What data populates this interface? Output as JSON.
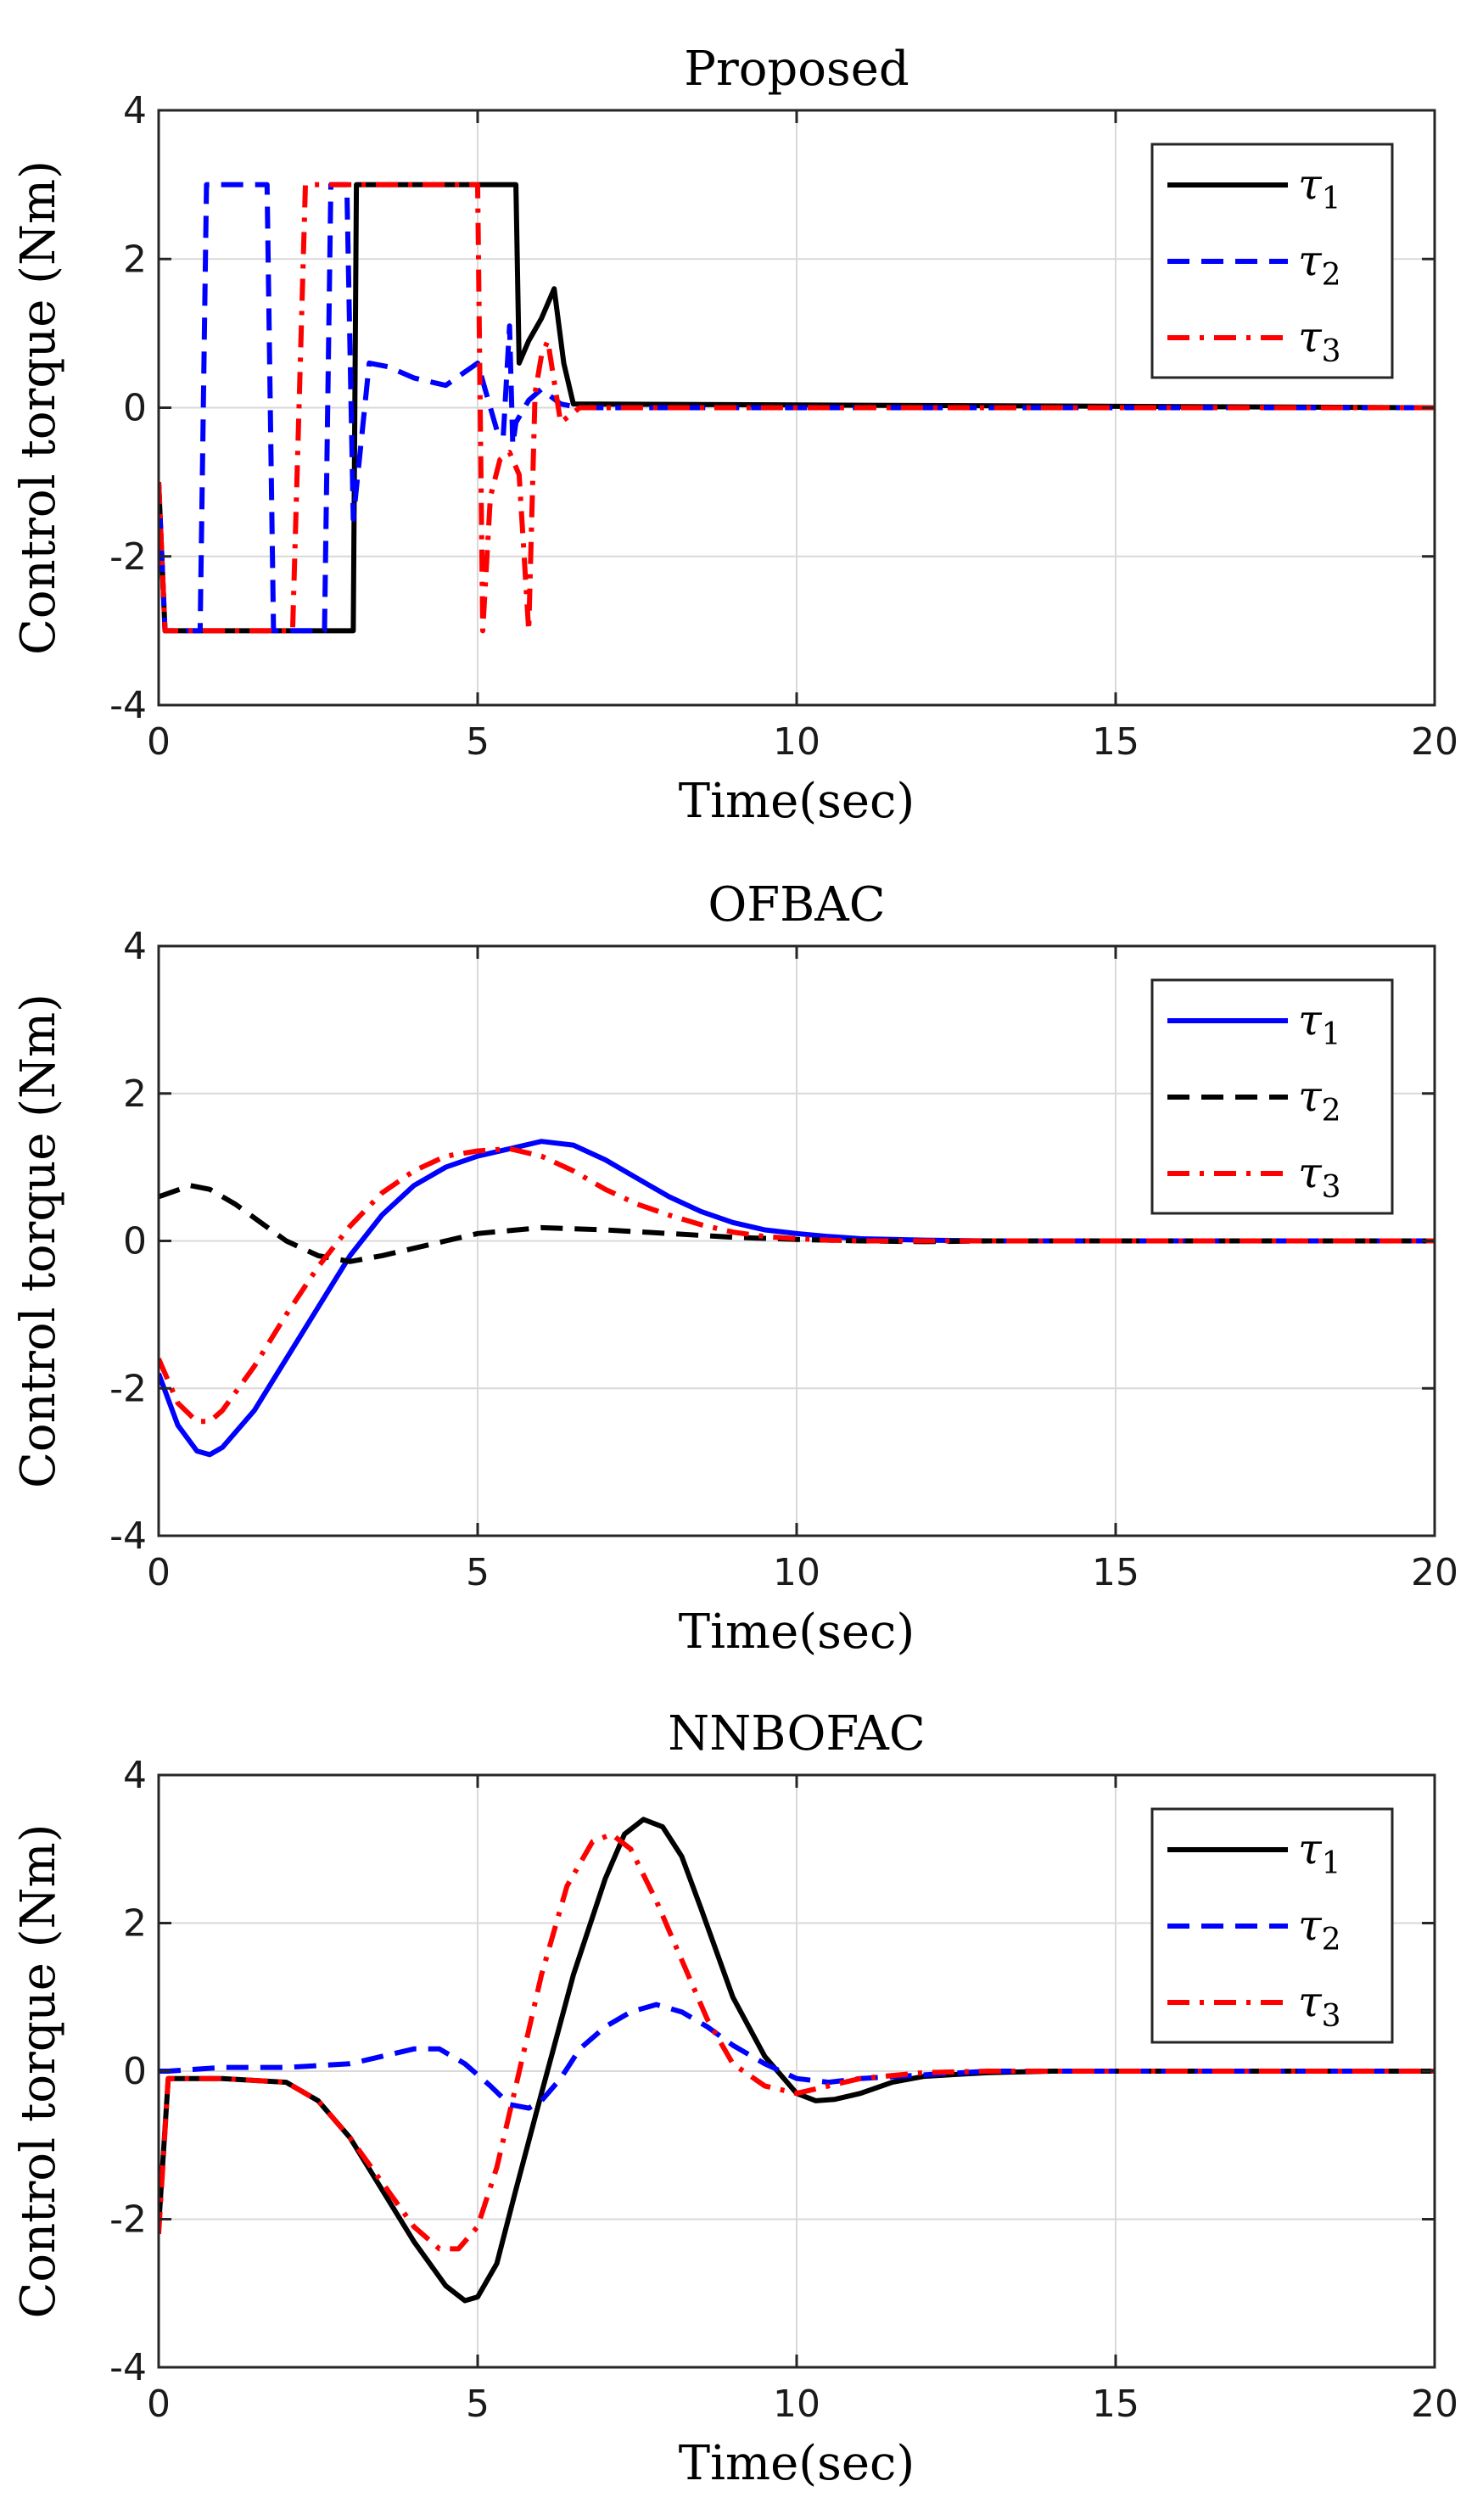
{
  "chart_data": [
    {
      "type": "line",
      "title": "Proposed",
      "xlabel": "Time(sec)",
      "ylabel": "Control torque (Nm)",
      "xlim": [
        0,
        20
      ],
      "ylim": [
        -4,
        4
      ],
      "xticks": [
        "0",
        "5",
        "10",
        "15",
        "20"
      ],
      "yticks": [
        "4",
        "2",
        "0",
        "-2",
        "-4"
      ],
      "grid": true,
      "legend_position": "top-right",
      "series": [
        {
          "name": "τ",
          "sub": "1",
          "color": "#000000",
          "dash": "solid",
          "x": [
            0,
            0.1,
            2.9,
            3.05,
            3.1,
            5.6,
            5.65,
            5.8,
            6.0,
            6.2,
            6.35,
            6.5,
            20
          ],
          "y": [
            -1.0,
            -3,
            -3,
            -3,
            3,
            3,
            0.6,
            0.9,
            1.2,
            1.6,
            0.6,
            0.05,
            0
          ]
        },
        {
          "name": "τ",
          "sub": "2",
          "color": "#0000ff",
          "dash": "dash",
          "x": [
            0,
            0.1,
            0.65,
            0.75,
            1.7,
            1.8,
            2.6,
            2.7,
            2.95,
            3.05,
            3.3,
            3.6,
            4.0,
            4.5,
            5.0,
            5.2,
            5.3,
            5.4,
            5.5,
            5.55,
            5.6,
            5.8,
            6.0,
            6.3,
            6.6,
            20
          ],
          "y": [
            -1.0,
            -3,
            -3,
            3,
            3,
            -3,
            -3,
            3,
            3,
            -1.5,
            0.6,
            0.55,
            0.4,
            0.3,
            0.6,
            0.0,
            -0.3,
            -0.4,
            1.1,
            -0.5,
            -0.2,
            0.1,
            0.25,
            0.05,
            0,
            0
          ]
        },
        {
          "name": "τ",
          "sub": "3",
          "color": "#ff0000",
          "dash": "dashdot",
          "x": [
            0,
            0.1,
            2.1,
            2.3,
            5.0,
            5.08,
            5.2,
            5.35,
            5.5,
            5.65,
            5.8,
            5.9,
            6.0,
            6.1,
            6.3,
            6.6,
            20
          ],
          "y": [
            -1.0,
            -3,
            -3,
            3,
            3,
            -3,
            -1.2,
            -0.7,
            -0.6,
            -0.9,
            -3,
            0.2,
            0.7,
            0.9,
            -0.2,
            0,
            0
          ]
        }
      ]
    },
    {
      "type": "line",
      "title": "OFBAC",
      "xlabel": "Time(sec)",
      "ylabel": "Control torque (Nm)",
      "xlim": [
        0,
        20
      ],
      "ylim": [
        -4,
        4
      ],
      "xticks": [
        "0",
        "5",
        "10",
        "15",
        "20"
      ],
      "yticks": [
        "4",
        "2",
        "0",
        "-2",
        "-4"
      ],
      "grid": true,
      "legend_position": "top-right",
      "series": [
        {
          "name": "τ",
          "sub": "1",
          "color": "#0000ff",
          "dash": "solid",
          "x": [
            0,
            0.3,
            0.6,
            0.8,
            1.0,
            1.5,
            2.0,
            2.5,
            3.0,
            3.5,
            4.0,
            4.5,
            5.0,
            5.5,
            6.0,
            6.5,
            7.0,
            7.5,
            8.0,
            8.5,
            9.0,
            9.5,
            10.0,
            10.5,
            11.0,
            11.5,
            12,
            13,
            14,
            15,
            20
          ],
          "y": [
            -1.8,
            -2.5,
            -2.85,
            -2.9,
            -2.8,
            -2.3,
            -1.6,
            -0.9,
            -0.2,
            0.35,
            0.75,
            1.0,
            1.15,
            1.25,
            1.35,
            1.3,
            1.1,
            0.85,
            0.6,
            0.4,
            0.25,
            0.15,
            0.1,
            0.06,
            0.03,
            0.02,
            0.01,
            0,
            0,
            0,
            0
          ]
        },
        {
          "name": "τ",
          "sub": "2",
          "color": "#000000",
          "dash": "dash",
          "x": [
            0,
            0.5,
            0.8,
            1.2,
            1.6,
            2.0,
            2.5,
            3.0,
            3.5,
            4.0,
            4.5,
            5.0,
            6.0,
            7.0,
            8.0,
            9.0,
            10.0,
            11.0,
            12.0,
            13,
            14,
            15,
            20
          ],
          "y": [
            0.6,
            0.75,
            0.7,
            0.5,
            0.25,
            0.0,
            -0.2,
            -0.28,
            -0.2,
            -0.1,
            0.0,
            0.1,
            0.18,
            0.15,
            0.1,
            0.05,
            0.02,
            0.0,
            -0.01,
            0,
            0,
            0,
            0
          ]
        },
        {
          "name": "τ",
          "sub": "3",
          "color": "#ff0000",
          "dash": "dashdot",
          "x": [
            0,
            0.3,
            0.6,
            0.8,
            1.0,
            1.5,
            2.0,
            2.5,
            3.0,
            3.5,
            4.0,
            4.5,
            5.0,
            5.5,
            6.0,
            6.5,
            7.0,
            7.5,
            8.0,
            8.5,
            9.0,
            9.5,
            10.0,
            10.5,
            11.0,
            12,
            13,
            14,
            20
          ],
          "y": [
            -1.6,
            -2.2,
            -2.45,
            -2.45,
            -2.3,
            -1.7,
            -1.0,
            -0.35,
            0.2,
            0.65,
            0.95,
            1.15,
            1.22,
            1.25,
            1.15,
            0.95,
            0.7,
            0.5,
            0.35,
            0.22,
            0.12,
            0.06,
            0.03,
            0.01,
            0,
            0,
            0,
            0,
            0
          ]
        }
      ]
    },
    {
      "type": "line",
      "title": "NNBOFAC",
      "xlabel": "Time(sec)",
      "ylabel": "Control torque (Nm)",
      "xlim": [
        0,
        20
      ],
      "ylim": [
        -4,
        4
      ],
      "xticks": [
        "0",
        "5",
        "10",
        "15",
        "20"
      ],
      "yticks": [
        "4",
        "2",
        "0",
        "-2",
        "-4"
      ],
      "grid": true,
      "legend_position": "top-right",
      "series": [
        {
          "name": "τ",
          "sub": "1",
          "color": "#000000",
          "dash": "solid",
          "x": [
            0,
            0.15,
            1.0,
            2.0,
            2.5,
            3.0,
            3.5,
            4.0,
            4.5,
            4.8,
            5.0,
            5.3,
            5.6,
            6.0,
            6.5,
            7.0,
            7.3,
            7.6,
            7.9,
            8.2,
            8.5,
            9.0,
            9.5,
            10.0,
            10.3,
            10.6,
            11.0,
            11.5,
            12.0,
            13.0,
            14,
            20
          ],
          "y": [
            -2.1,
            -0.1,
            -0.1,
            -0.15,
            -0.4,
            -0.9,
            -1.6,
            -2.3,
            -2.9,
            -3.1,
            -3.05,
            -2.6,
            -1.6,
            -0.3,
            1.3,
            2.6,
            3.2,
            3.4,
            3.3,
            2.9,
            2.2,
            1.0,
            0.2,
            -0.3,
            -0.4,
            -0.38,
            -0.3,
            -0.15,
            -0.07,
            -0.02,
            0,
            0
          ]
        },
        {
          "name": "τ",
          "sub": "2",
          "color": "#0000ff",
          "dash": "dash",
          "x": [
            0,
            0.15,
            1.0,
            2.0,
            3.0,
            3.5,
            4.0,
            4.4,
            4.8,
            5.2,
            5.5,
            5.8,
            6.0,
            6.3,
            6.6,
            7.0,
            7.4,
            7.8,
            8.2,
            8.6,
            9.0,
            9.5,
            10.0,
            10.5,
            11.0,
            12.0,
            13.0,
            20
          ],
          "y": [
            0,
            0.0,
            0.05,
            0.05,
            0.1,
            0.2,
            0.3,
            0.3,
            0.1,
            -0.2,
            -0.45,
            -0.5,
            -0.4,
            -0.1,
            0.3,
            0.6,
            0.8,
            0.9,
            0.8,
            0.6,
            0.35,
            0.1,
            -0.1,
            -0.15,
            -0.1,
            -0.05,
            0,
            0
          ]
        },
        {
          "name": "τ",
          "sub": "3",
          "color": "#ff0000",
          "dash": "dashdot",
          "x": [
            0,
            0.15,
            1.0,
            2.0,
            2.5,
            3.0,
            3.5,
            4.0,
            4.4,
            4.7,
            5.0,
            5.3,
            5.6,
            6.0,
            6.4,
            6.8,
            7.1,
            7.4,
            7.8,
            8.2,
            8.6,
            9.0,
            9.5,
            10.0,
            10.5,
            11.0,
            12.0,
            13,
            20
          ],
          "y": [
            -2.2,
            -0.1,
            -0.1,
            -0.15,
            -0.4,
            -0.9,
            -1.5,
            -2.1,
            -2.4,
            -2.4,
            -2.1,
            -1.3,
            -0.2,
            1.3,
            2.5,
            3.1,
            3.2,
            3.0,
            2.3,
            1.5,
            0.7,
            0.1,
            -0.2,
            -0.3,
            -0.2,
            -0.1,
            -0.02,
            0,
            0
          ]
        }
      ]
    }
  ]
}
